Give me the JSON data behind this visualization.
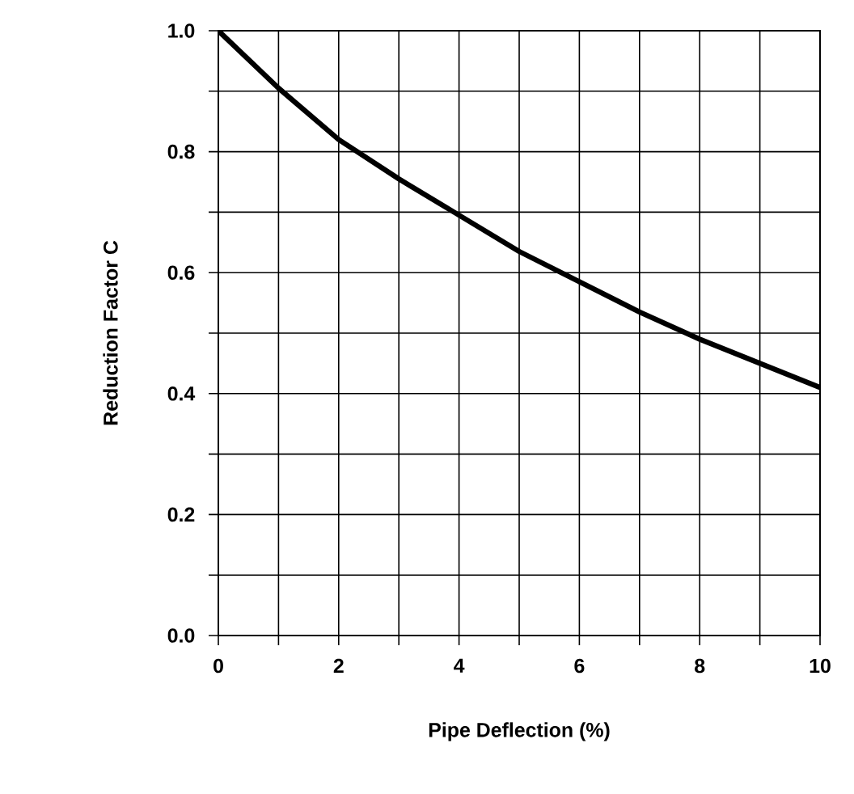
{
  "chart_data": {
    "type": "line",
    "xlabel": "Pipe Deflection (%)",
    "ylabel": "Reduction Factor C",
    "x": [
      0,
      1,
      2,
      3,
      4,
      5,
      6,
      7,
      8,
      9,
      10
    ],
    "series": [
      {
        "color": "#000000",
        "values": [
          1.0,
          0.905,
          0.82,
          0.755,
          0.695,
          0.635,
          0.585,
          0.535,
          0.49,
          0.45,
          0.41
        ]
      }
    ],
    "xlim": [
      0,
      10
    ],
    "ylim": [
      0,
      1
    ],
    "xticks": [
      0,
      {
        "value": 1,
        "label": null
      },
      2,
      {
        "value": 3,
        "label": null
      },
      4,
      {
        "value": 5,
        "label": null
      },
      6,
      {
        "value": 7,
        "label": null
      },
      8,
      {
        "value": 9,
        "label": null
      },
      10
    ],
    "yticks": [
      {
        "value": 0,
        "label": "0.0"
      },
      {
        "value": 0.1,
        "label": null
      },
      {
        "value": 0.2,
        "label": "0.2"
      },
      {
        "value": 0.3,
        "label": null
      },
      {
        "value": 0.4,
        "label": "0.4"
      },
      {
        "value": 0.5,
        "label": null
      },
      {
        "value": 0.6,
        "label": "0.6"
      },
      {
        "value": 0.7,
        "label": null
      },
      {
        "value": 0.8,
        "label": "0.8"
      },
      {
        "value": 0.9,
        "label": null
      },
      {
        "value": 1,
        "label": "1.0"
      }
    ],
    "grid": true,
    "marker": "none",
    "line_style": "solid"
  }
}
